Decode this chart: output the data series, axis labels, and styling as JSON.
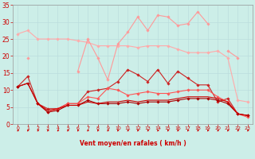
{
  "x": [
    0,
    1,
    2,
    3,
    4,
    5,
    6,
    7,
    8,
    9,
    10,
    11,
    12,
    13,
    14,
    15,
    16,
    17,
    18,
    19,
    20,
    21,
    22,
    23
  ],
  "series": [
    {
      "color": "#ffaaaa",
      "linewidth": 0.8,
      "marker": "D",
      "markersize": 1.8,
      "values": [
        26.5,
        27.5,
        25,
        25,
        25,
        25,
        24.5,
        24,
        23,
        23,
        23,
        23,
        22.5,
        23,
        23,
        23,
        22,
        21,
        21,
        21,
        21.5,
        19.5,
        7,
        6.5
      ]
    },
    {
      "color": "#ff9999",
      "linewidth": 0.8,
      "marker": "D",
      "markersize": 1.8,
      "values": [
        null,
        19.5,
        null,
        null,
        null,
        null,
        15.5,
        25,
        19.5,
        13,
        23.5,
        27,
        31.5,
        27.5,
        32,
        31.5,
        29,
        29.5,
        33,
        29.5,
        null,
        21.5,
        19.5,
        null
      ]
    },
    {
      "color": "#cc2222",
      "linewidth": 0.8,
      "marker": "D",
      "markersize": 1.8,
      "values": [
        11,
        14,
        6,
        4.5,
        4.5,
        6,
        6,
        9.5,
        10,
        10.5,
        12.5,
        16,
        14.5,
        12.5,
        16,
        12,
        15.5,
        13.5,
        11.5,
        11.5,
        6.5,
        7.5,
        3,
        2.5
      ]
    },
    {
      "color": "#ff5555",
      "linewidth": 0.8,
      "marker": "D",
      "markersize": 1.8,
      "values": [
        null,
        null,
        6,
        3.5,
        4.5,
        6,
        6,
        8,
        7.5,
        10.5,
        10,
        8.5,
        9,
        9.5,
        9,
        9,
        9.5,
        10,
        10,
        10,
        8,
        6.5,
        3,
        2
      ]
    },
    {
      "color": "#aa0000",
      "linewidth": 0.8,
      "marker": "D",
      "markersize": 1.8,
      "values": [
        11,
        12,
        6,
        3.5,
        4,
        5.5,
        5.5,
        7,
        6,
        6,
        6,
        6.5,
        6,
        6.5,
        6.5,
        6.5,
        7,
        7.5,
        7.5,
        7.5,
        7,
        6,
        3,
        2.5
      ]
    },
    {
      "color": "#cc0000",
      "linewidth": 0.8,
      "marker": null,
      "markersize": 0,
      "values": [
        11,
        12,
        6,
        4,
        4.5,
        5.5,
        5.5,
        6.5,
        6,
        6.5,
        6.5,
        7,
        6.5,
        7,
        7,
        7,
        7.5,
        8,
        8,
        8,
        7.5,
        6.5,
        3,
        2.5
      ]
    }
  ],
  "xlim": [
    -0.5,
    23.5
  ],
  "ylim": [
    0,
    35
  ],
  "yticks": [
    0,
    5,
    10,
    15,
    20,
    25,
    30,
    35
  ],
  "xticks": [
    0,
    1,
    2,
    3,
    4,
    5,
    6,
    7,
    8,
    9,
    10,
    11,
    12,
    13,
    14,
    15,
    16,
    17,
    18,
    19,
    20,
    21,
    22,
    23
  ],
  "xlabel": "Vent moyen/en rafales ( km/h )",
  "xlabel_color": "#cc0000",
  "xlabel_fontsize": 5.5,
  "tick_color": "#cc0000",
  "ytick_fontsize": 5.5,
  "xtick_fontsize": 4.5,
  "arrow_color": "#cc0000",
  "background_color": "#cceee8",
  "grid_color": "#bbdddd",
  "spine_color": "#999999"
}
